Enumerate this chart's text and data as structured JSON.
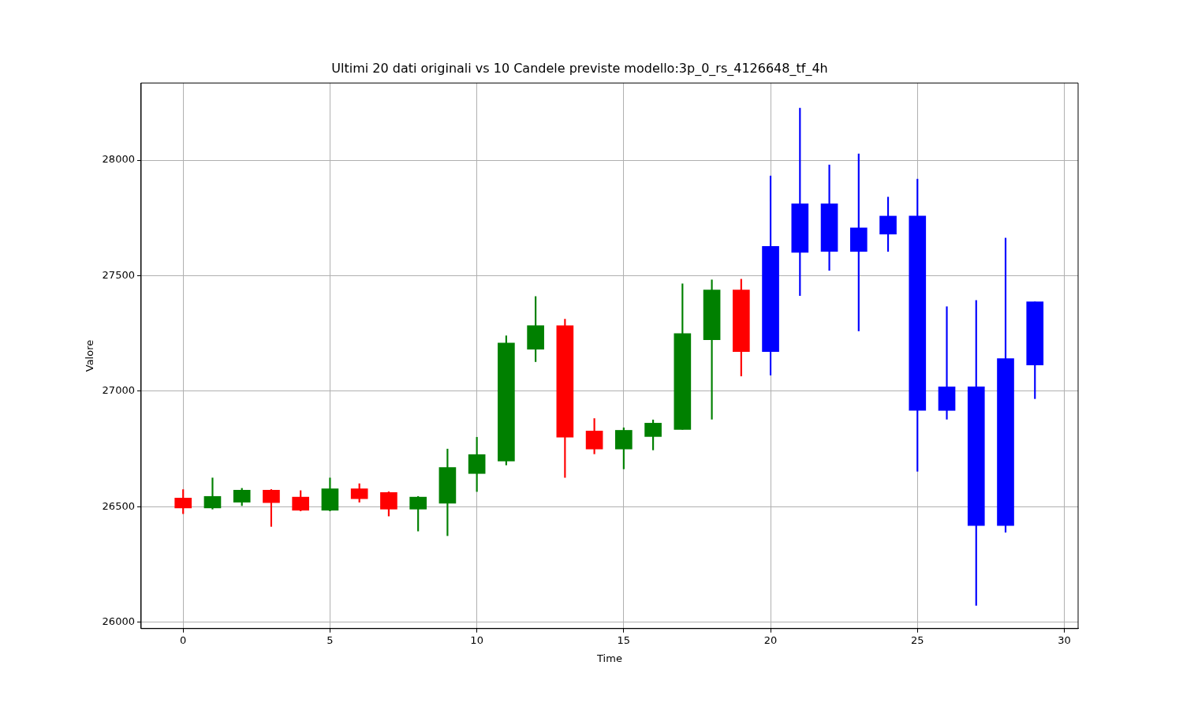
{
  "chart_data": {
    "type": "candlestick",
    "title": "Ultimi 20 dati originali vs 10 Candele previste modello:3p_0_rs_4126648_tf_4h",
    "xlabel": "Time",
    "ylabel": "Valore",
    "x": [
      0,
      1,
      2,
      3,
      4,
      5,
      6,
      7,
      8,
      9,
      10,
      11,
      12,
      13,
      14,
      15,
      16,
      17,
      18,
      19,
      20,
      21,
      22,
      23,
      24,
      25,
      26,
      27,
      28,
      29
    ],
    "ohlc": [
      [
        26538,
        26575,
        26470,
        26495
      ],
      [
        26495,
        26625,
        26490,
        26545
      ],
      [
        26520,
        26580,
        26505,
        26572
      ],
      [
        26572,
        26575,
        26415,
        26518
      ],
      [
        26542,
        26570,
        26482,
        26485
      ],
      [
        26485,
        26625,
        26482,
        26578
      ],
      [
        26578,
        26600,
        26520,
        26535
      ],
      [
        26562,
        26565,
        26460,
        26490
      ],
      [
        26490,
        26545,
        26395,
        26542
      ],
      [
        26515,
        26750,
        26375,
        26670
      ],
      [
        26644,
        26801,
        26566,
        26726
      ],
      [
        26698,
        27240,
        26681,
        27209
      ],
      [
        27182,
        27410,
        27128,
        27284
      ],
      [
        27284,
        27312,
        26627,
        26801
      ],
      [
        26828,
        26882,
        26729,
        26750
      ],
      [
        26750,
        26842,
        26664,
        26831
      ],
      [
        26804,
        26876,
        26746,
        26862
      ],
      [
        26835,
        27465,
        26835,
        27250
      ],
      [
        27223,
        27482,
        26879,
        27438
      ],
      [
        27438,
        27485,
        27066,
        27172
      ],
      [
        27172,
        27932,
        27070,
        27627
      ],
      [
        27601,
        28225,
        27414,
        27811
      ],
      [
        27811,
        27979,
        27523,
        27605
      ],
      [
        27605,
        28027,
        27261,
        27707
      ],
      [
        27680,
        27840,
        27605,
        27758
      ],
      [
        27758,
        27918,
        26654,
        26917
      ],
      [
        26917,
        27366,
        26879,
        27019
      ],
      [
        27019,
        27393,
        26073,
        26419
      ],
      [
        26419,
        27663,
        26390,
        27141
      ],
      [
        27114,
        27387,
        26968,
        27387
      ]
    ],
    "colors": [
      "#ff0000",
      "#008000",
      "#008000",
      "#ff0000",
      "#ff0000",
      "#008000",
      "#ff0000",
      "#ff0000",
      "#008000",
      "#008000",
      "#008000",
      "#008000",
      "#008000",
      "#ff0000",
      "#ff0000",
      "#008000",
      "#008000",
      "#008000",
      "#008000",
      "#ff0000",
      "#0000ff",
      "#0000ff",
      "#0000ff",
      "#0000ff",
      "#0000ff",
      "#0000ff",
      "#0000ff",
      "#0000ff",
      "#0000ff",
      "#0000ff"
    ],
    "xlim": [
      -1.43,
      30.47
    ],
    "ylim": [
      25973,
      28334
    ],
    "xticks": [
      0,
      5,
      10,
      15,
      20,
      25,
      30
    ],
    "yticks": [
      26000,
      26500,
      27000,
      27500,
      28000
    ],
    "grid": true
  }
}
